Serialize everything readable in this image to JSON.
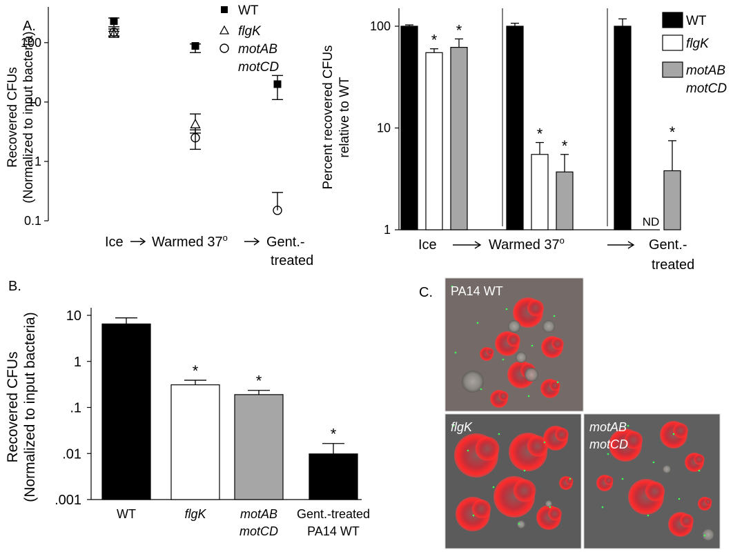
{
  "panel_labels": {
    "a": "A.",
    "b": "B.",
    "c": "C."
  },
  "chart_data": [
    {
      "id": "A-left",
      "type": "scatter",
      "yscale": "log",
      "ylim": [
        0.1,
        400
      ],
      "yticks": [
        0.1,
        1,
        10,
        100
      ],
      "ytick_labels": [
        "0.1",
        "1",
        "10",
        "100"
      ],
      "ylabel_lines": [
        "Recovered CFUs",
        "(Normalized to input bacteria)"
      ],
      "categories": [
        "Ice",
        "Warmed 37",
        "Gent.-\ntreated"
      ],
      "xlabel_parts": {
        "ice": "Ice",
        "warm": "Warmed 37",
        "sup": "o",
        "gent1": "Gent.-",
        "gent2": "treated"
      },
      "legend": [
        {
          "marker": "square",
          "label": "WT",
          "italic": false
        },
        {
          "marker": "triangle",
          "label": "flgK",
          "italic": true
        },
        {
          "marker": "circle",
          "label": "motAB",
          "label2": "motCD",
          "italic": true
        }
      ],
      "series": [
        {
          "name": "WT",
          "marker": "square",
          "values": [
            230,
            88,
            20
          ],
          "err_low": [
            185,
            68,
            11
          ],
          "err_high": [
            260,
            95,
            28
          ]
        },
        {
          "name": "flgK",
          "marker": "triangle",
          "values": [
            140,
            4.2,
            null
          ],
          "err_low": [
            125,
            3.0,
            null
          ],
          "err_high": [
            155,
            6.3,
            null
          ]
        },
        {
          "name": "motAB motCD",
          "marker": "circle",
          "values": [
            150,
            2.5,
            0.15
          ],
          "err_low": [
            130,
            1.6,
            null
          ],
          "err_high": [
            170,
            3.4,
            0.3
          ]
        }
      ]
    },
    {
      "id": "A-right",
      "type": "bar",
      "yscale": "log",
      "ylim": [
        1,
        150
      ],
      "yticks": [
        1,
        10,
        100
      ],
      "ytick_labels": [
        "1",
        "10",
        "100"
      ],
      "ylabel_lines": [
        "Percent recovered CFUs",
        "relative to WT"
      ],
      "categories": [
        "Ice",
        "Warmed 37",
        "Gent.-treated"
      ],
      "xlabel_parts": {
        "ice": "Ice",
        "warm": "Warmed 37",
        "sup": "o",
        "gent1": "Gent.-",
        "gent2": "treated"
      },
      "legend": [
        {
          "color": "#000000",
          "label": "WT",
          "italic": false
        },
        {
          "color": "#ffffff",
          "label": "flgK",
          "italic": true
        },
        {
          "color": "#a6a6a6",
          "label": "motAB",
          "label2": "motCD",
          "italic": true
        }
      ],
      "series": [
        {
          "name": "WT",
          "color": "#000000",
          "values": [
            100,
            100,
            100
          ],
          "err": [
            103,
            107,
            118
          ]
        },
        {
          "name": "flgK",
          "color": "#ffffff",
          "values": [
            55,
            5.5,
            null
          ],
          "err": [
            60,
            7.2,
            null
          ]
        },
        {
          "name": "motAB motCD",
          "color": "#a6a6a6",
          "values": [
            62,
            3.7,
            3.8
          ],
          "err": [
            75,
            5.5,
            7.5
          ]
        }
      ],
      "stars": [
        "*",
        "*",
        "*",
        "*",
        "*"
      ],
      "nd_label": "ND"
    },
    {
      "id": "B",
      "type": "bar",
      "yscale": "log",
      "ylim": [
        0.001,
        10
      ],
      "yticks": [
        0.001,
        0.01,
        0.1,
        1,
        10
      ],
      "ytick_labels": [
        ".001",
        ".01",
        ".1",
        "1",
        "10"
      ],
      "ylabel_lines": [
        "Recovered CFUs",
        "(Normalized to input bacteria)"
      ],
      "categories": [
        {
          "l1": "WT",
          "l2": "",
          "italic": false
        },
        {
          "l1": "flgK",
          "l2": "",
          "italic": true
        },
        {
          "l1": "motAB",
          "l2": "motCD",
          "italic": true
        },
        {
          "l1": "Gent.-treated",
          "l2": "PA14 WT",
          "italic": false
        }
      ],
      "values": [
        6.5,
        0.31,
        0.19,
        0.0098
      ],
      "err": [
        8.8,
        0.39,
        0.235,
        0.0165
      ],
      "colors": [
        "#000000",
        "#ffffff",
        "#a6a6a6",
        "#000000"
      ],
      "stars": [
        "",
        "*",
        "*",
        "*"
      ]
    }
  ],
  "micrographs": [
    {
      "label": "PA14 WT",
      "italic": false
    },
    {
      "label": "flgK",
      "italic": true
    },
    {
      "label": "motAB",
      "label2": "motCD",
      "italic": true
    }
  ]
}
